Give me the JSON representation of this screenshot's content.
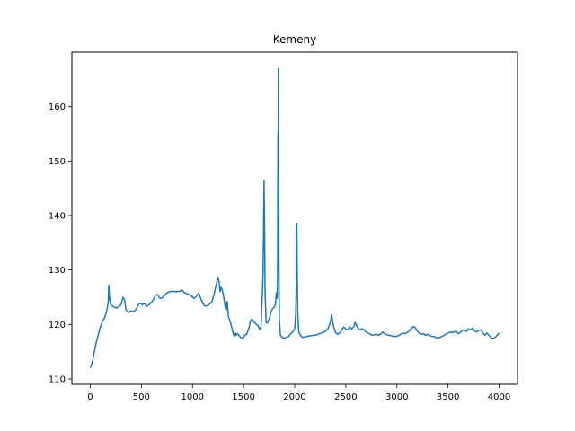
{
  "chart_data": {
    "type": "line",
    "title": "Kemeny",
    "xlabel": "",
    "ylabel": "",
    "xlim": [
      -180,
      4180
    ],
    "ylim": [
      109,
      170
    ],
    "x_ticks": [
      0,
      500,
      1000,
      1500,
      2000,
      2500,
      3000,
      3500,
      4000
    ],
    "y_ticks": [
      110,
      120,
      130,
      140,
      150,
      160
    ],
    "grid": false,
    "series": [
      {
        "color": "#1f77b4",
        "points": [
          [
            0,
            112.0
          ],
          [
            20,
            113.0
          ],
          [
            40,
            115.0
          ],
          [
            60,
            116.8
          ],
          [
            80,
            118.2
          ],
          [
            100,
            119.6
          ],
          [
            120,
            120.6
          ],
          [
            140,
            121.2
          ],
          [
            160,
            122.4
          ],
          [
            175,
            124.0
          ],
          [
            180,
            127.2
          ],
          [
            190,
            124.6
          ],
          [
            200,
            123.6
          ],
          [
            230,
            123.2
          ],
          [
            260,
            123.0
          ],
          [
            280,
            123.3
          ],
          [
            300,
            123.6
          ],
          [
            320,
            125.0
          ],
          [
            335,
            124.5
          ],
          [
            350,
            122.6
          ],
          [
            380,
            122.2
          ],
          [
            400,
            122.5
          ],
          [
            420,
            122.3
          ],
          [
            450,
            122.8
          ],
          [
            470,
            123.6
          ],
          [
            490,
            123.9
          ],
          [
            510,
            123.6
          ],
          [
            530,
            123.9
          ],
          [
            550,
            123.3
          ],
          [
            580,
            123.7
          ],
          [
            600,
            124.1
          ],
          [
            620,
            124.6
          ],
          [
            640,
            125.4
          ],
          [
            660,
            125.5
          ],
          [
            680,
            124.8
          ],
          [
            700,
            124.8
          ],
          [
            720,
            125.2
          ],
          [
            740,
            125.6
          ],
          [
            760,
            125.9
          ],
          [
            800,
            126.1
          ],
          [
            840,
            126.0
          ],
          [
            880,
            126.1
          ],
          [
            900,
            126.3
          ],
          [
            920,
            125.8
          ],
          [
            950,
            125.6
          ],
          [
            980,
            125.4
          ],
          [
            1000,
            125.0
          ],
          [
            1020,
            124.8
          ],
          [
            1040,
            125.2
          ],
          [
            1060,
            125.7
          ],
          [
            1080,
            124.8
          ],
          [
            1100,
            123.9
          ],
          [
            1120,
            123.4
          ],
          [
            1140,
            123.4
          ],
          [
            1160,
            123.6
          ],
          [
            1190,
            124.2
          ],
          [
            1210,
            125.4
          ],
          [
            1230,
            127.2
          ],
          [
            1250,
            128.6
          ],
          [
            1260,
            127.8
          ],
          [
            1270,
            126.0
          ],
          [
            1280,
            126.8
          ],
          [
            1290,
            126.4
          ],
          [
            1300,
            125.6
          ],
          [
            1320,
            123.2
          ],
          [
            1330,
            122.6
          ],
          [
            1340,
            124.2
          ],
          [
            1350,
            121.6
          ],
          [
            1360,
            121.0
          ],
          [
            1380,
            119.8
          ],
          [
            1400,
            118.2
          ],
          [
            1410,
            117.8
          ],
          [
            1420,
            118.4
          ],
          [
            1430,
            118.0
          ],
          [
            1440,
            118.3
          ],
          [
            1460,
            117.9
          ],
          [
            1480,
            117.4
          ],
          [
            1500,
            117.6
          ],
          [
            1510,
            118.0
          ],
          [
            1530,
            118.2
          ],
          [
            1550,
            119.2
          ],
          [
            1570,
            120.8
          ],
          [
            1580,
            121.0
          ],
          [
            1600,
            120.5
          ],
          [
            1620,
            120.1
          ],
          [
            1640,
            119.8
          ],
          [
            1660,
            119.0
          ],
          [
            1670,
            119.6
          ],
          [
            1680,
            124.0
          ],
          [
            1690,
            129.0
          ],
          [
            1695,
            136.0
          ],
          [
            1700,
            146.5
          ],
          [
            1705,
            138.0
          ],
          [
            1710,
            126.0
          ],
          [
            1720,
            120.5
          ],
          [
            1730,
            120.2
          ],
          [
            1740,
            120.6
          ],
          [
            1750,
            121.0
          ],
          [
            1760,
            121.6
          ],
          [
            1770,
            122.4
          ],
          [
            1780,
            122.8
          ],
          [
            1790,
            123.0
          ],
          [
            1800,
            123.2
          ],
          [
            1810,
            123.6
          ],
          [
            1815,
            124.5
          ],
          [
            1820,
            125.8
          ],
          [
            1825,
            125.0
          ],
          [
            1830,
            124.8
          ],
          [
            1833,
            130.0
          ],
          [
            1836,
            155.0
          ],
          [
            1838,
            140.0
          ],
          [
            1840,
            167.0
          ],
          [
            1843,
            145.0
          ],
          [
            1846,
            130.0
          ],
          [
            1850,
            121.0
          ],
          [
            1860,
            118.0
          ],
          [
            1880,
            117.6
          ],
          [
            1900,
            117.5
          ],
          [
            1920,
            117.6
          ],
          [
            1940,
            117.8
          ],
          [
            1960,
            118.2
          ],
          [
            1980,
            118.6
          ],
          [
            2000,
            119.2
          ],
          [
            2010,
            122.0
          ],
          [
            2015,
            127.0
          ],
          [
            2020,
            138.6
          ],
          [
            2025,
            130.0
          ],
          [
            2030,
            122.0
          ],
          [
            2040,
            118.6
          ],
          [
            2060,
            117.9
          ],
          [
            2080,
            117.6
          ],
          [
            2100,
            117.7
          ],
          [
            2120,
            117.8
          ],
          [
            2150,
            117.9
          ],
          [
            2180,
            118.0
          ],
          [
            2200,
            118.0
          ],
          [
            2230,
            118.2
          ],
          [
            2260,
            118.4
          ],
          [
            2290,
            118.6
          ],
          [
            2310,
            118.9
          ],
          [
            2330,
            119.4
          ],
          [
            2345,
            120.2
          ],
          [
            2355,
            121.0
          ],
          [
            2360,
            121.8
          ],
          [
            2370,
            120.8
          ],
          [
            2380,
            119.6
          ],
          [
            2400,
            118.5
          ],
          [
            2420,
            118.2
          ],
          [
            2440,
            118.4
          ],
          [
            2460,
            119.0
          ],
          [
            2480,
            119.5
          ],
          [
            2500,
            119.2
          ],
          [
            2520,
            119.0
          ],
          [
            2540,
            119.5
          ],
          [
            2560,
            119.2
          ],
          [
            2580,
            119.6
          ],
          [
            2590,
            120.4
          ],
          [
            2600,
            120.0
          ],
          [
            2620,
            119.3
          ],
          [
            2640,
            119.0
          ],
          [
            2660,
            119.2
          ],
          [
            2680,
            119.0
          ],
          [
            2700,
            118.6
          ],
          [
            2720,
            118.4
          ],
          [
            2740,
            118.2
          ],
          [
            2760,
            118.0
          ],
          [
            2780,
            118.1
          ],
          [
            2800,
            118.2
          ],
          [
            2820,
            118.0
          ],
          [
            2840,
            118.2
          ],
          [
            2860,
            118.6
          ],
          [
            2880,
            118.3
          ],
          [
            2900,
            118.1
          ],
          [
            2920,
            118.0
          ],
          [
            2950,
            117.9
          ],
          [
            2980,
            117.8
          ],
          [
            3000,
            117.8
          ],
          [
            3020,
            118.0
          ],
          [
            3040,
            118.2
          ],
          [
            3060,
            118.4
          ],
          [
            3080,
            118.3
          ],
          [
            3100,
            118.5
          ],
          [
            3120,
            118.8
          ],
          [
            3140,
            119.2
          ],
          [
            3160,
            119.6
          ],
          [
            3180,
            119.4
          ],
          [
            3200,
            118.8
          ],
          [
            3220,
            118.4
          ],
          [
            3240,
            118.2
          ],
          [
            3260,
            118.3
          ],
          [
            3280,
            118.0
          ],
          [
            3300,
            118.2
          ],
          [
            3320,
            118.0
          ],
          [
            3340,
            117.8
          ],
          [
            3360,
            117.8
          ],
          [
            3380,
            117.6
          ],
          [
            3400,
            117.5
          ],
          [
            3420,
            117.6
          ],
          [
            3440,
            117.8
          ],
          [
            3460,
            118.0
          ],
          [
            3480,
            118.2
          ],
          [
            3500,
            118.4
          ],
          [
            3520,
            118.6
          ],
          [
            3540,
            118.5
          ],
          [
            3560,
            118.6
          ],
          [
            3580,
            118.8
          ],
          [
            3600,
            118.3
          ],
          [
            3620,
            118.5
          ],
          [
            3640,
            118.9
          ],
          [
            3660,
            119.0
          ],
          [
            3680,
            118.7
          ],
          [
            3700,
            119.2
          ],
          [
            3720,
            119.0
          ],
          [
            3740,
            119.3
          ],
          [
            3760,
            118.8
          ],
          [
            3780,
            118.6
          ],
          [
            3800,
            118.9
          ],
          [
            3820,
            119.0
          ],
          [
            3840,
            118.5
          ],
          [
            3860,
            118.0
          ],
          [
            3880,
            118.4
          ],
          [
            3900,
            118.0
          ],
          [
            3920,
            117.6
          ],
          [
            3940,
            117.4
          ],
          [
            3960,
            117.6
          ],
          [
            3980,
            118.0
          ],
          [
            4000,
            118.4
          ]
        ]
      }
    ]
  }
}
